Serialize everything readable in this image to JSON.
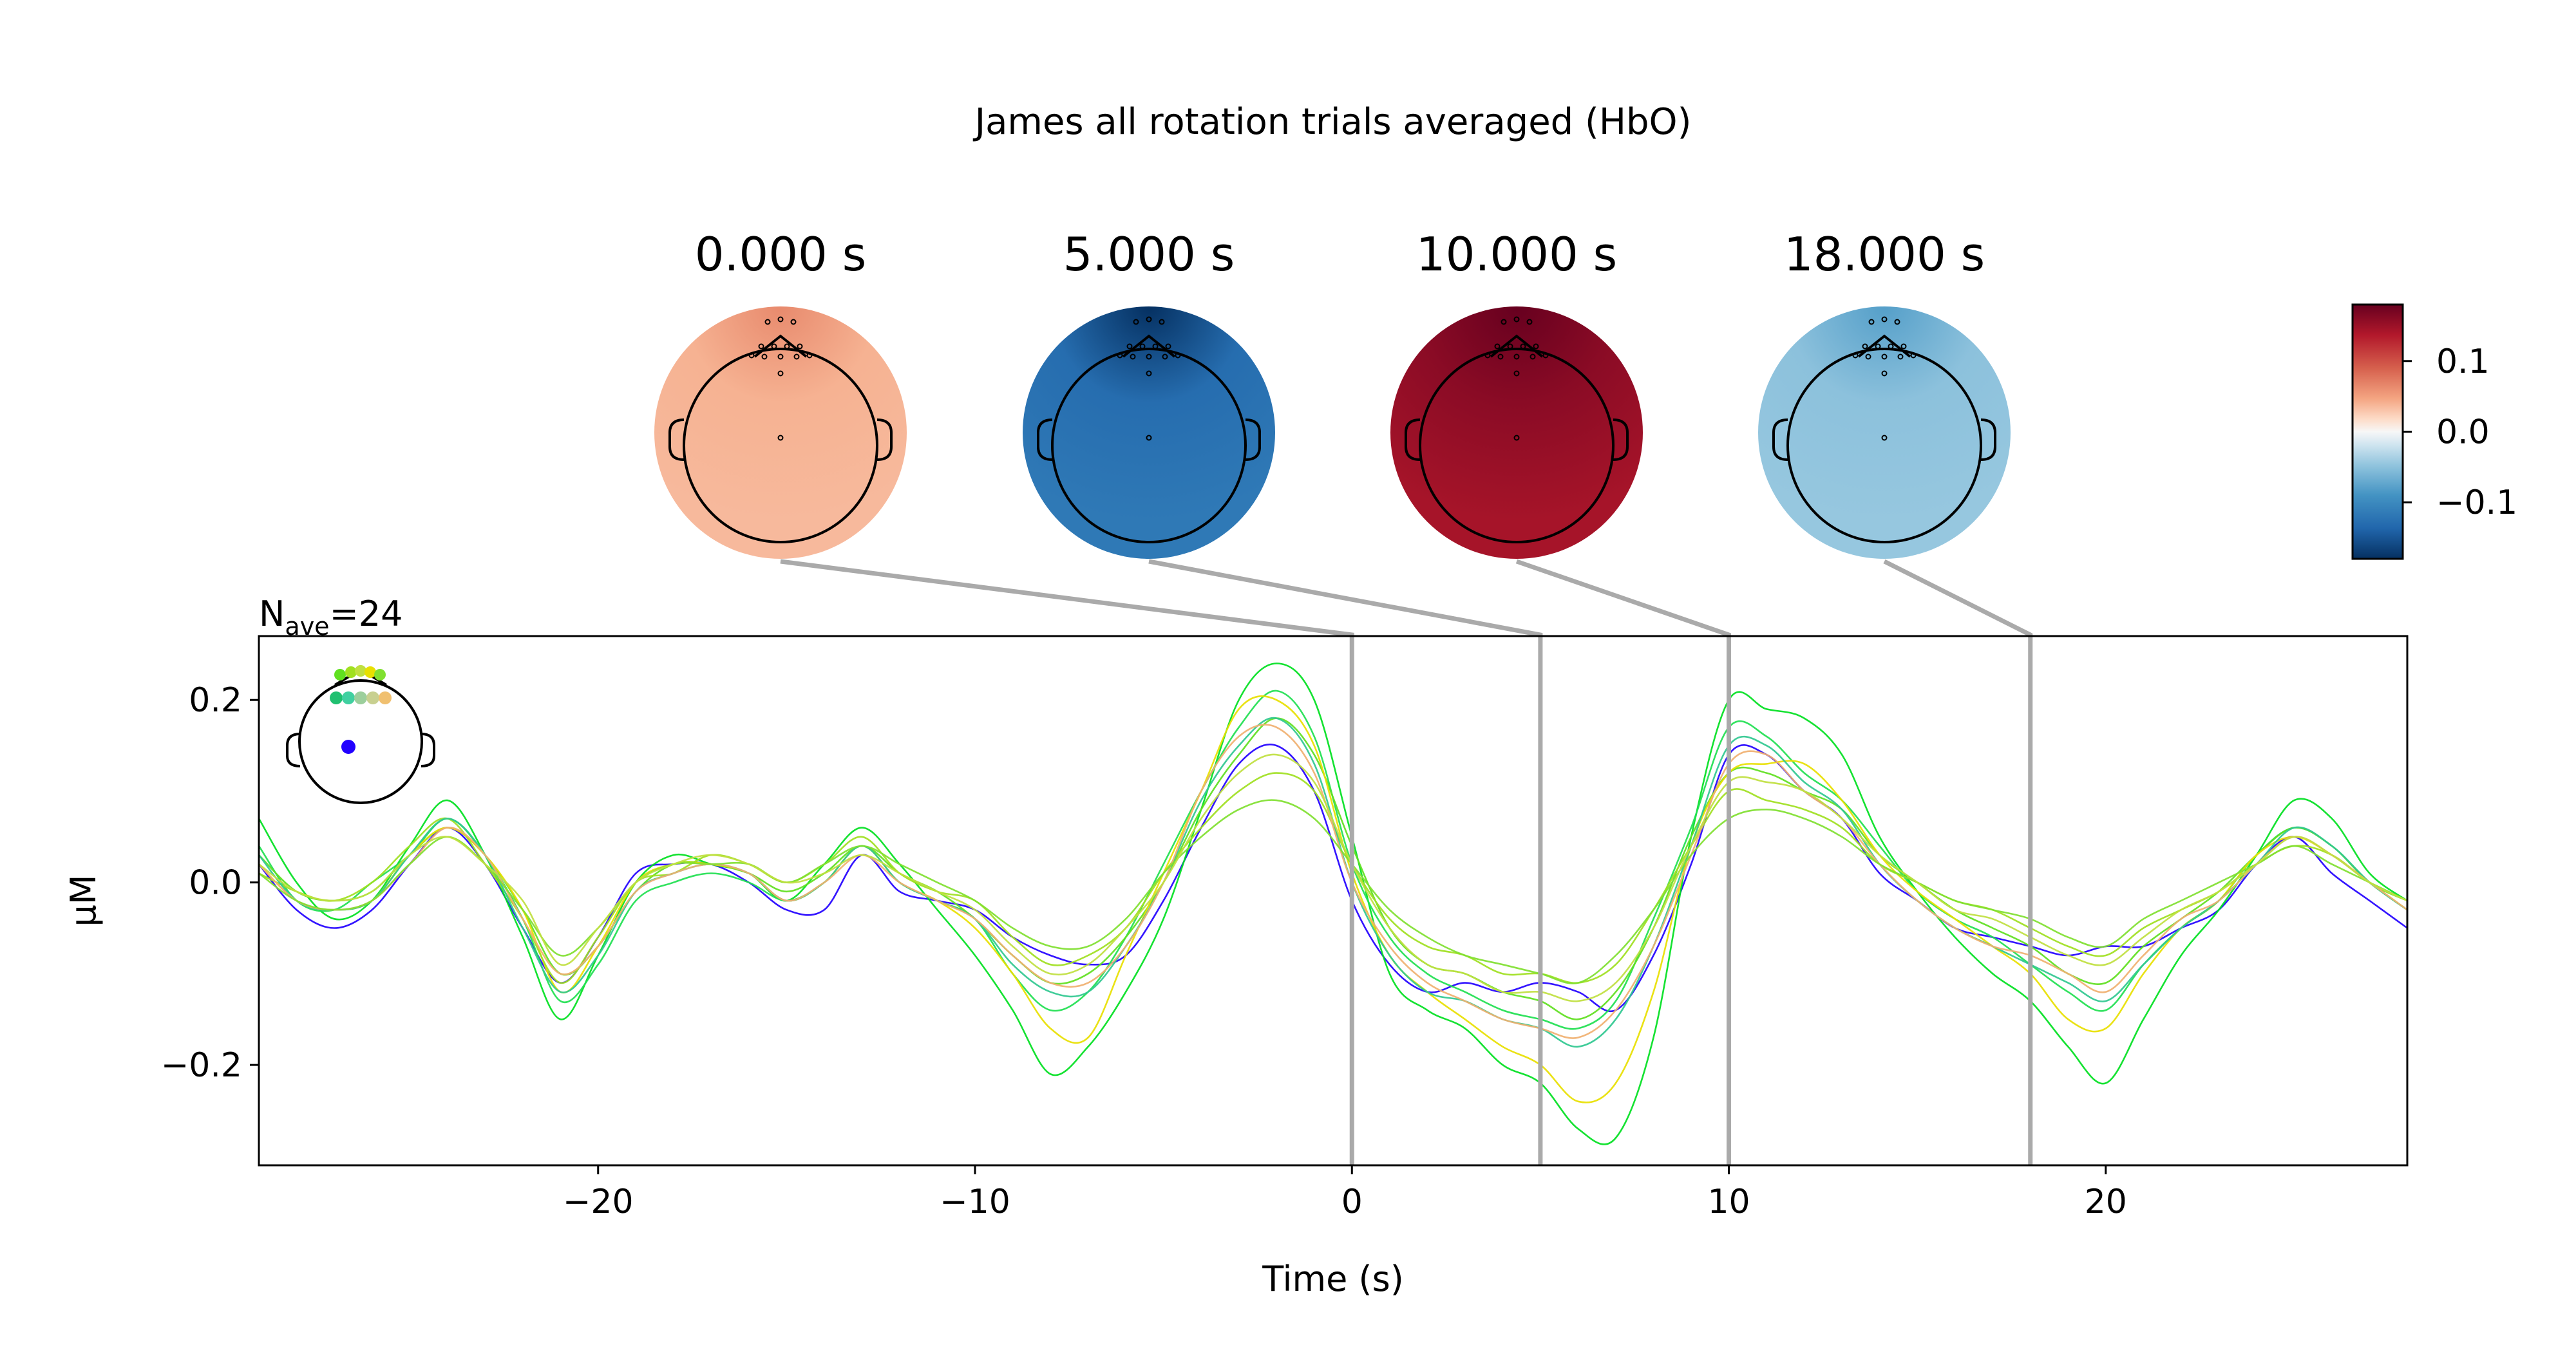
{
  "figure": {
    "title": "James all rotation trials averaged (HbO)",
    "nave_prefix": "N",
    "nave_sub": "ave",
    "nave_value": "=24"
  },
  "topomaps": [
    {
      "label": "0.000 s",
      "time": 0,
      "value": 0.04
    },
    {
      "label": "5.000 s",
      "time": 5,
      "value": -0.13
    },
    {
      "label": "10.000 s",
      "time": 10,
      "value": 0.16
    },
    {
      "label": "18.000 s",
      "time": 18,
      "value": -0.05
    }
  ],
  "colorbar": {
    "range": [
      -0.18,
      0.18
    ],
    "ticks": [
      {
        "label": "0.1",
        "value": 0.1
      },
      {
        "label": "0.0",
        "value": 0.0
      },
      {
        "label": "−0.1",
        "value": -0.1
      }
    ],
    "colormap": "RdBu_r"
  },
  "chart_data": {
    "type": "line",
    "title": "James all rotation trials averaged (HbO)",
    "xlabel": "Time (s)",
    "ylabel": "µM",
    "xlim": [
      -29,
      28
    ],
    "ylim": [
      -0.31,
      0.27
    ],
    "xticks": [
      {
        "label": "−20",
        "value": -20
      },
      {
        "label": "−10",
        "value": -10
      },
      {
        "label": "0",
        "value": 0
      },
      {
        "label": "10",
        "value": 10
      },
      {
        "label": "20",
        "value": 20
      }
    ],
    "yticks": [
      {
        "label": "0.2",
        "value": 0.2
      },
      {
        "label": "0.0",
        "value": 0.0
      },
      {
        "label": "−0.2",
        "value": -0.2
      }
    ],
    "markers": [
      0,
      5,
      10,
      18
    ],
    "x": [
      -29,
      -28,
      -27,
      -26,
      -25,
      -24,
      -23,
      -22,
      -21,
      -20,
      -19,
      -18,
      -17,
      -16,
      -15,
      -14,
      -13,
      -12,
      -11,
      -10,
      -9,
      -8,
      -7,
      -6,
      -5,
      -4,
      -3,
      -2,
      -1,
      0,
      1,
      2,
      3,
      4,
      5,
      6,
      7,
      8,
      9,
      10,
      11,
      12,
      13,
      14,
      15,
      16,
      17,
      18,
      19,
      20,
      21,
      22,
      23,
      24,
      25,
      26,
      27,
      28
    ],
    "series": [
      {
        "color": "#2200ff",
        "values": [
          0.02,
          -0.03,
          -0.05,
          -0.03,
          0.02,
          0.06,
          0.02,
          -0.05,
          -0.11,
          -0.06,
          0.01,
          0.02,
          0.02,
          0.0,
          -0.03,
          -0.03,
          0.03,
          -0.01,
          -0.02,
          -0.03,
          -0.06,
          -0.08,
          -0.09,
          -0.08,
          -0.02,
          0.06,
          0.13,
          0.15,
          0.1,
          -0.02,
          -0.09,
          -0.12,
          -0.11,
          -0.12,
          -0.11,
          -0.12,
          -0.14,
          -0.08,
          0.02,
          0.14,
          0.14,
          0.1,
          0.07,
          0.01,
          -0.02,
          -0.05,
          -0.06,
          -0.07,
          -0.08,
          -0.07,
          -0.07,
          -0.05,
          -0.03,
          0.02,
          0.05,
          0.01,
          -0.02,
          -0.05
        ]
      },
      {
        "color": "#00e020",
        "values": [
          0.07,
          0.0,
          -0.04,
          -0.02,
          0.04,
          0.09,
          0.03,
          -0.06,
          -0.15,
          -0.08,
          0.0,
          0.03,
          0.02,
          0.01,
          -0.02,
          0.02,
          0.06,
          0.02,
          -0.03,
          -0.08,
          -0.14,
          -0.21,
          -0.18,
          -0.12,
          -0.04,
          0.08,
          0.2,
          0.24,
          0.2,
          0.05,
          -0.1,
          -0.14,
          -0.16,
          -0.2,
          -0.22,
          -0.27,
          -0.28,
          -0.17,
          0.05,
          0.2,
          0.19,
          0.18,
          0.14,
          0.05,
          -0.01,
          -0.06,
          -0.1,
          -0.13,
          -0.18,
          -0.22,
          -0.15,
          -0.08,
          -0.03,
          0.03,
          0.09,
          0.07,
          0.01,
          -0.02
        ]
      },
      {
        "color": "#20e050",
        "values": [
          0.04,
          -0.02,
          -0.03,
          0.0,
          0.03,
          0.07,
          0.03,
          -0.04,
          -0.13,
          -0.09,
          -0.02,
          0.0,
          0.01,
          0.0,
          -0.02,
          0.0,
          0.04,
          0.0,
          -0.02,
          -0.04,
          -0.1,
          -0.14,
          -0.12,
          -0.06,
          0.02,
          0.1,
          0.17,
          0.21,
          0.16,
          0.02,
          -0.06,
          -0.1,
          -0.12,
          -0.14,
          -0.15,
          -0.16,
          -0.13,
          -0.04,
          0.06,
          0.17,
          0.16,
          0.12,
          0.09,
          0.04,
          -0.01,
          -0.04,
          -0.06,
          -0.09,
          -0.12,
          -0.14,
          -0.09,
          -0.05,
          -0.02,
          0.03,
          0.06,
          0.04,
          0.0,
          -0.03
        ]
      },
      {
        "color": "#60e020",
        "values": [
          0.03,
          -0.01,
          -0.02,
          -0.01,
          0.03,
          0.06,
          0.03,
          -0.03,
          -0.1,
          -0.07,
          -0.01,
          0.02,
          0.02,
          0.01,
          -0.01,
          0.01,
          0.04,
          0.01,
          -0.01,
          -0.04,
          -0.08,
          -0.11,
          -0.1,
          -0.06,
          0.0,
          0.08,
          0.14,
          0.18,
          0.14,
          0.04,
          -0.05,
          -0.09,
          -0.1,
          -0.12,
          -0.13,
          -0.15,
          -0.12,
          -0.05,
          0.05,
          0.12,
          0.12,
          0.1,
          0.08,
          0.03,
          0.0,
          -0.03,
          -0.05,
          -0.07,
          -0.1,
          -0.11,
          -0.07,
          -0.04,
          -0.01,
          0.03,
          0.06,
          0.04,
          0.0,
          -0.02
        ]
      },
      {
        "color": "#e8e000",
        "values": [
          0.02,
          -0.02,
          -0.03,
          -0.02,
          0.03,
          0.06,
          0.03,
          -0.03,
          -0.12,
          -0.07,
          0.0,
          0.02,
          0.02,
          0.01,
          -0.02,
          0.0,
          0.04,
          0.0,
          -0.02,
          -0.05,
          -0.1,
          -0.16,
          -0.17,
          -0.08,
          0.01,
          0.1,
          0.19,
          0.2,
          0.15,
          0.01,
          -0.08,
          -0.12,
          -0.15,
          -0.18,
          -0.2,
          -0.24,
          -0.22,
          -0.12,
          0.04,
          0.12,
          0.13,
          0.13,
          0.09,
          0.03,
          -0.01,
          -0.04,
          -0.07,
          -0.1,
          -0.15,
          -0.16,
          -0.1,
          -0.05,
          -0.02,
          0.03,
          0.05,
          0.03,
          0.0,
          -0.03
        ]
      },
      {
        "color": "#a0e020",
        "values": [
          0.01,
          -0.01,
          -0.02,
          0.0,
          0.04,
          0.07,
          0.02,
          -0.04,
          -0.11,
          -0.06,
          0.0,
          0.01,
          0.03,
          0.02,
          0.0,
          0.02,
          0.05,
          0.01,
          -0.01,
          -0.02,
          -0.06,
          -0.09,
          -0.08,
          -0.05,
          0.01,
          0.06,
          0.1,
          0.12,
          0.1,
          0.02,
          -0.04,
          -0.07,
          -0.08,
          -0.1,
          -0.1,
          -0.11,
          -0.09,
          -0.03,
          0.04,
          0.1,
          0.09,
          0.08,
          0.06,
          0.02,
          0.0,
          -0.02,
          -0.03,
          -0.05,
          -0.07,
          -0.08,
          -0.05,
          -0.03,
          -0.01,
          0.02,
          0.04,
          0.03,
          0.0,
          -0.02
        ]
      },
      {
        "color": "#30c890",
        "values": [
          0.03,
          -0.02,
          -0.03,
          -0.02,
          0.03,
          0.07,
          0.03,
          -0.05,
          -0.12,
          -0.08,
          -0.01,
          0.01,
          0.02,
          0.01,
          -0.02,
          0.0,
          0.04,
          0.0,
          -0.02,
          -0.04,
          -0.09,
          -0.12,
          -0.12,
          -0.07,
          0.0,
          0.09,
          0.15,
          0.18,
          0.13,
          0.0,
          -0.08,
          -0.12,
          -0.13,
          -0.15,
          -0.16,
          -0.18,
          -0.15,
          -0.07,
          0.04,
          0.15,
          0.15,
          0.11,
          0.08,
          0.02,
          -0.02,
          -0.05,
          -0.07,
          -0.09,
          -0.11,
          -0.13,
          -0.09,
          -0.05,
          -0.02,
          0.02,
          0.06,
          0.04,
          0.0,
          -0.03
        ]
      },
      {
        "color": "#f0b070",
        "values": [
          0.02,
          -0.02,
          -0.03,
          -0.02,
          0.02,
          0.06,
          0.03,
          -0.04,
          -0.1,
          -0.07,
          -0.01,
          0.01,
          0.02,
          0.01,
          -0.02,
          0.0,
          0.03,
          0.0,
          -0.02,
          -0.04,
          -0.08,
          -0.11,
          -0.11,
          -0.07,
          0.0,
          0.1,
          0.16,
          0.17,
          0.12,
          0.0,
          -0.07,
          -0.11,
          -0.13,
          -0.15,
          -0.16,
          -0.17,
          -0.14,
          -0.07,
          0.03,
          0.13,
          0.14,
          0.1,
          0.07,
          0.02,
          -0.02,
          -0.05,
          -0.07,
          -0.08,
          -0.1,
          -0.12,
          -0.08,
          -0.04,
          -0.02,
          0.02,
          0.05,
          0.03,
          0.0,
          -0.03
        ]
      },
      {
        "color": "#80e030",
        "values": [
          0.01,
          -0.02,
          -0.03,
          -0.02,
          0.02,
          0.05,
          0.02,
          -0.03,
          -0.08,
          -0.05,
          0.0,
          0.02,
          0.02,
          0.02,
          0.0,
          0.02,
          0.04,
          0.02,
          0.0,
          -0.02,
          -0.05,
          -0.07,
          -0.07,
          -0.04,
          0.01,
          0.05,
          0.08,
          0.09,
          0.07,
          0.02,
          -0.03,
          -0.06,
          -0.08,
          -0.09,
          -0.1,
          -0.11,
          -0.08,
          -0.03,
          0.03,
          0.07,
          0.08,
          0.07,
          0.05,
          0.02,
          0.0,
          -0.02,
          -0.03,
          -0.04,
          -0.06,
          -0.07,
          -0.04,
          -0.02,
          0.0,
          0.02,
          0.04,
          0.02,
          0.0,
          -0.02
        ]
      },
      {
        "color": "#c0e040",
        "values": [
          0.02,
          -0.01,
          -0.02,
          -0.01,
          0.03,
          0.05,
          0.02,
          -0.02,
          -0.09,
          -0.05,
          0.0,
          0.02,
          0.03,
          0.02,
          0.0,
          0.01,
          0.03,
          0.01,
          -0.01,
          -0.03,
          -0.07,
          -0.1,
          -0.09,
          -0.05,
          0.0,
          0.07,
          0.12,
          0.14,
          0.11,
          0.02,
          -0.05,
          -0.09,
          -0.1,
          -0.12,
          -0.12,
          -0.13,
          -0.11,
          -0.05,
          0.04,
          0.11,
          0.11,
          0.1,
          0.07,
          0.03,
          0.0,
          -0.03,
          -0.04,
          -0.06,
          -0.08,
          -0.09,
          -0.06,
          -0.03,
          -0.01,
          0.02,
          0.05,
          0.03,
          0.0,
          -0.02
        ]
      }
    ]
  }
}
